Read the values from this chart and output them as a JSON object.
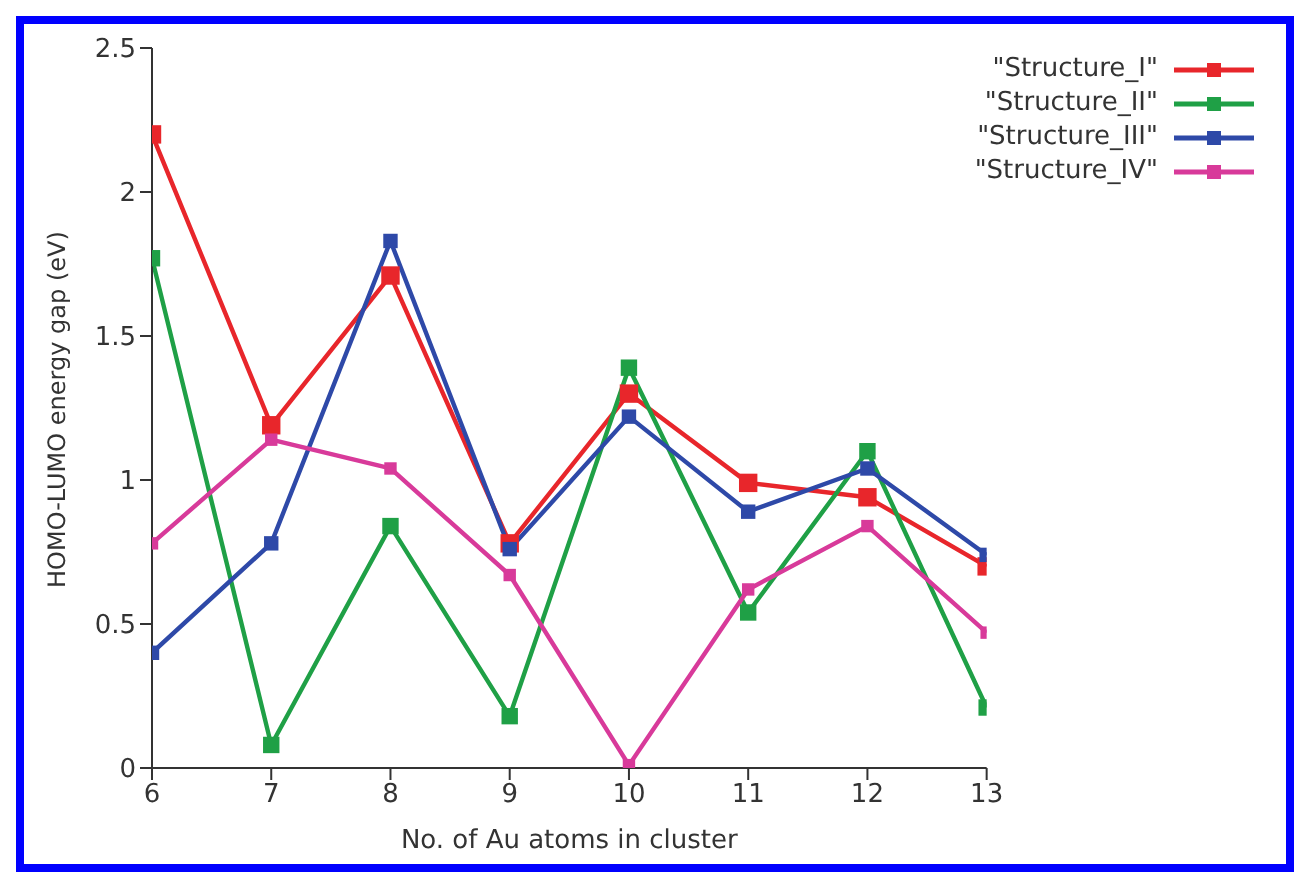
{
  "chart_data": {
    "type": "line",
    "xlabel": "No. of Au atoms in cluster",
    "ylabel": "HOMO-LUMO energy gap (eV)",
    "x": [
      6,
      7,
      8,
      9,
      10,
      11,
      12,
      13
    ],
    "xlim": [
      6,
      13
    ],
    "xticks": [
      6,
      7,
      8,
      9,
      10,
      11,
      12,
      13
    ],
    "ylim": [
      0,
      2.5
    ],
    "yticks": [
      0,
      0.5,
      1,
      1.5,
      2,
      2.5
    ],
    "series": [
      {
        "name": "\"Structure_I\"",
        "color": "#e8262b",
        "values": [
          2.2,
          1.19,
          1.71,
          0.78,
          1.3,
          0.99,
          0.94,
          0.7
        ]
      },
      {
        "name": "\"Structure_II\"",
        "color": "#1fa046",
        "values": [
          1.77,
          0.08,
          0.84,
          0.18,
          1.39,
          0.54,
          1.1,
          0.21
        ]
      },
      {
        "name": "\"Structure_III\"",
        "color": "#2e49a8",
        "values": [
          0.4,
          0.78,
          1.83,
          0.76,
          1.22,
          0.89,
          1.04,
          0.74
        ]
      },
      {
        "name": "\"Structure_IV\"",
        "color": "#d83a9a",
        "values": [
          0.78,
          1.14,
          1.04,
          0.67,
          0.01,
          0.62,
          0.84,
          0.47
        ]
      }
    ],
    "marker": "square",
    "line_style": "solid",
    "grid": false,
    "legend": "top right"
  }
}
